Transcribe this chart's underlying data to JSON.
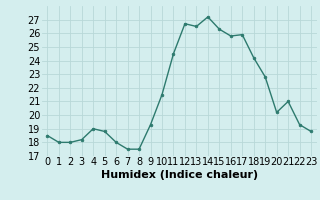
{
  "x": [
    0,
    1,
    2,
    3,
    4,
    5,
    6,
    7,
    8,
    9,
    10,
    11,
    12,
    13,
    14,
    15,
    16,
    17,
    18,
    19,
    20,
    21,
    22,
    23
  ],
  "y": [
    18.5,
    18.0,
    18.0,
    18.2,
    19.0,
    18.8,
    18.0,
    17.5,
    17.5,
    19.3,
    21.5,
    24.5,
    26.7,
    26.5,
    27.2,
    26.3,
    25.8,
    25.9,
    24.2,
    22.8,
    20.2,
    21.0,
    19.3,
    18.8
  ],
  "xlabel": "Humidex (Indice chaleur)",
  "ylim": [
    17,
    28
  ],
  "xlim": [
    -0.5,
    23.5
  ],
  "yticks": [
    17,
    18,
    19,
    20,
    21,
    22,
    23,
    24,
    25,
    26,
    27
  ],
  "xticks": [
    0,
    1,
    2,
    3,
    4,
    5,
    6,
    7,
    8,
    9,
    10,
    11,
    12,
    13,
    14,
    15,
    16,
    17,
    18,
    19,
    20,
    21,
    22,
    23
  ],
  "line_color": "#2d7a6e",
  "marker_color": "#2d7a6e",
  "bg_color": "#d4eeee",
  "grid_color": "#b8d8d8",
  "xlabel_fontsize": 8,
  "tick_fontsize": 7
}
